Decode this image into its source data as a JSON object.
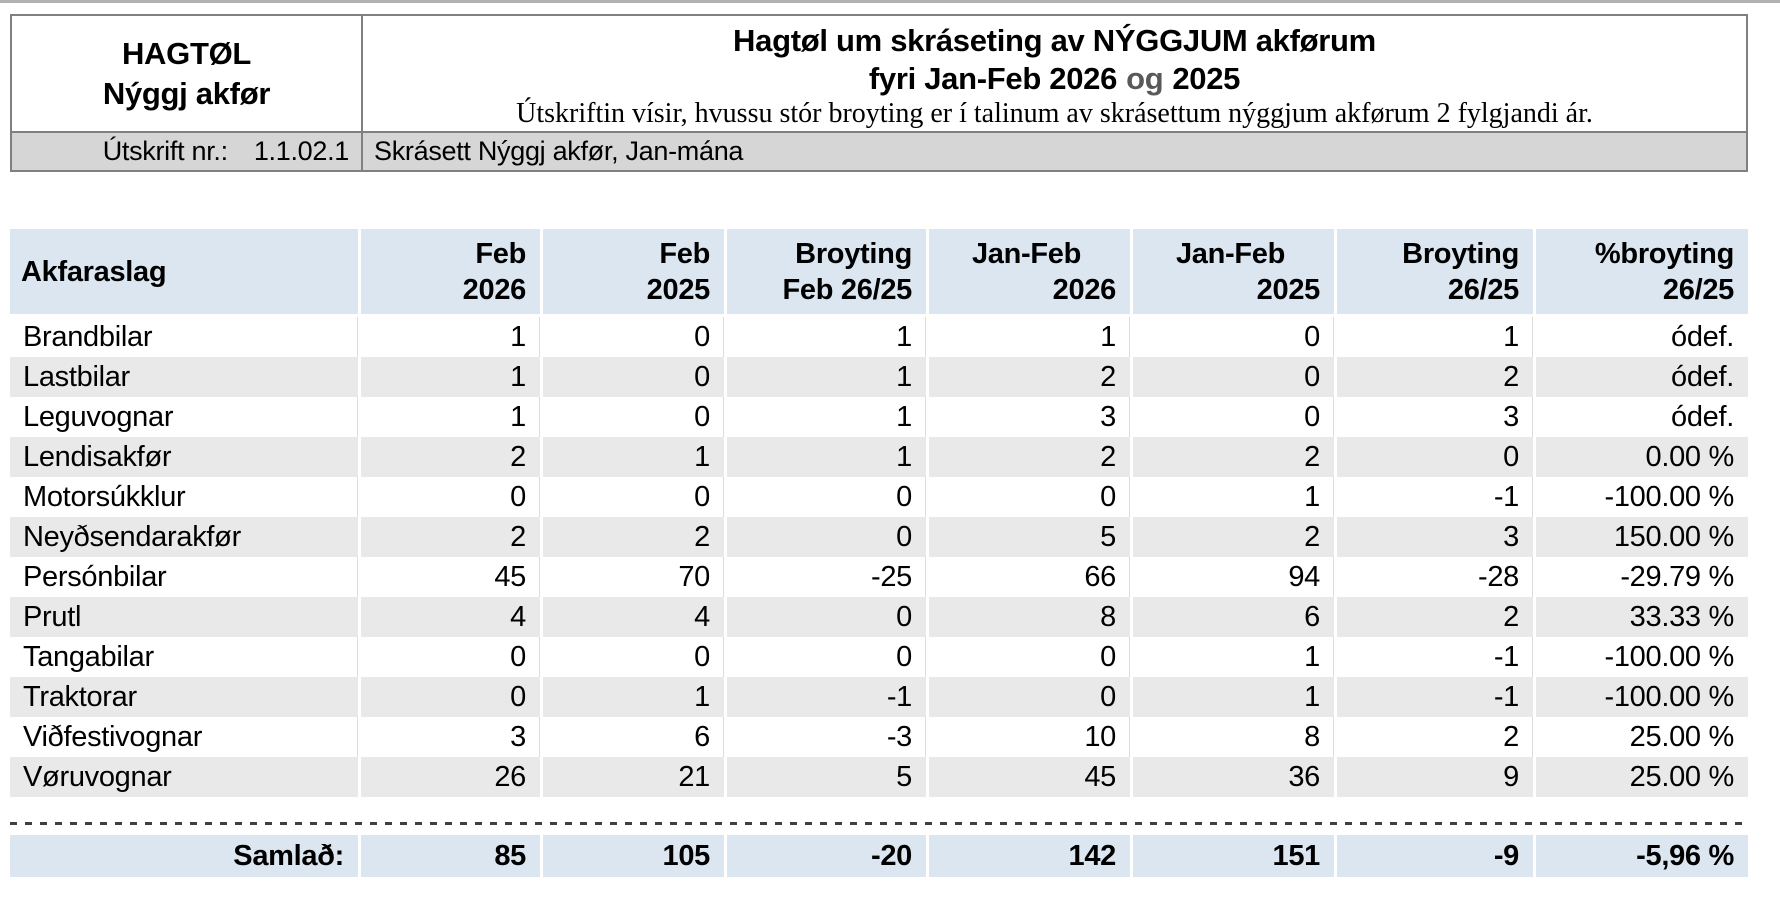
{
  "document": {
    "brand": {
      "line1": "HAGTØL",
      "line2": "Nýggj akfør"
    },
    "title": {
      "line1": "Hagtøl um skráseting av NÝGGJUM akførum",
      "line2_before_og": "fyri Jan-Feb 2026",
      "line2_og": "og",
      "line2_after_og": "2025",
      "subtitle": "Útskriftin vísir, hvussu stór broyting er í talinum av skrásettum nýggjum akførum 2 fylgjandi ár."
    },
    "band": {
      "print_label": "Útskrift nr.:",
      "print_value": "1.1.02.1",
      "description": "Skrásett Nýggj akfør, Jan-mána"
    }
  },
  "table": {
    "columns": [
      {
        "line1": "Akfaraslag",
        "line2": ""
      },
      {
        "line1": "Feb",
        "line2": "2026"
      },
      {
        "line1": "Feb",
        "line2": "2025"
      },
      {
        "line1": "Broyting",
        "line2": "Feb 26/25"
      },
      {
        "line1": "Jan-Feb",
        "line2": "2026"
      },
      {
        "line1": "Jan-Feb",
        "line2": "2025"
      },
      {
        "line1": "Broyting",
        "line2": "26/25"
      },
      {
        "line1": "%broyting",
        "line2": "26/25"
      }
    ],
    "rows": [
      {
        "label": "Brandbilar",
        "values": [
          "1",
          "0",
          "1",
          "1",
          "0",
          "1",
          "ódef."
        ]
      },
      {
        "label": "Lastbilar",
        "values": [
          "1",
          "0",
          "1",
          "2",
          "0",
          "2",
          "ódef."
        ]
      },
      {
        "label": "Leguvognar",
        "values": [
          "1",
          "0",
          "1",
          "3",
          "0",
          "3",
          "ódef."
        ]
      },
      {
        "label": "Lendisakfør",
        "values": [
          "2",
          "1",
          "1",
          "2",
          "2",
          "0",
          "0.00 %"
        ]
      },
      {
        "label": "Motorsúkklur",
        "values": [
          "0",
          "0",
          "0",
          "0",
          "1",
          "-1",
          "-100.00 %"
        ]
      },
      {
        "label": "Neyðsendarakfør",
        "values": [
          "2",
          "2",
          "0",
          "5",
          "2",
          "3",
          "150.00 %"
        ]
      },
      {
        "label": "Persónbilar",
        "values": [
          "45",
          "70",
          "-25",
          "66",
          "94",
          "-28",
          "-29.79 %"
        ]
      },
      {
        "label": "Prutl",
        "values": [
          "4",
          "4",
          "0",
          "8",
          "6",
          "2",
          "33.33 %"
        ]
      },
      {
        "label": "Tangabilar",
        "values": [
          "0",
          "0",
          "0",
          "0",
          "1",
          "-1",
          "-100.00 %"
        ]
      },
      {
        "label": "Traktorar",
        "values": [
          "0",
          "1",
          "-1",
          "0",
          "1",
          "-1",
          "-100.00 %"
        ]
      },
      {
        "label": "Viðfestivognar",
        "values": [
          "3",
          "6",
          "-3",
          "10",
          "8",
          "2",
          "25.00 %"
        ]
      },
      {
        "label": "Vøruvognar",
        "values": [
          "26",
          "21",
          "5",
          "45",
          "36",
          "9",
          "25.00 %"
        ]
      }
    ],
    "total": {
      "label": "Samlað:",
      "values": [
        "85",
        "105",
        "-20",
        "142",
        "151",
        "-9",
        "-5,96 %"
      ]
    }
  },
  "colors": {
    "header_fill": "#dce6f1",
    "row_alt_fill": "#e9e9e9",
    "band_fill": "#d6d6d6",
    "box_border": "#808080",
    "title_og_text": "#595959"
  }
}
